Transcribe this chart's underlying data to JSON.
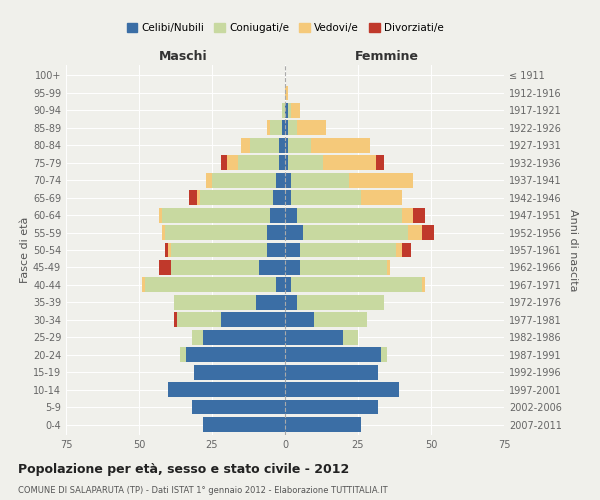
{
  "age_groups": [
    "0-4",
    "5-9",
    "10-14",
    "15-19",
    "20-24",
    "25-29",
    "30-34",
    "35-39",
    "40-44",
    "45-49",
    "50-54",
    "55-59",
    "60-64",
    "65-69",
    "70-74",
    "75-79",
    "80-84",
    "85-89",
    "90-94",
    "95-99",
    "100+"
  ],
  "birth_years": [
    "2007-2011",
    "2002-2006",
    "1997-2001",
    "1992-1996",
    "1987-1991",
    "1982-1986",
    "1977-1981",
    "1972-1976",
    "1967-1971",
    "1962-1966",
    "1957-1961",
    "1952-1956",
    "1947-1951",
    "1942-1946",
    "1937-1941",
    "1932-1936",
    "1927-1931",
    "1922-1926",
    "1917-1921",
    "1912-1916",
    "≤ 1911"
  ],
  "maschi": {
    "celibi": [
      28,
      32,
      40,
      31,
      34,
      28,
      22,
      10,
      3,
      9,
      6,
      6,
      5,
      4,
      3,
      2,
      2,
      1,
      0,
      0,
      0
    ],
    "coniugati": [
      0,
      0,
      0,
      0,
      2,
      4,
      15,
      28,
      45,
      30,
      33,
      35,
      37,
      25,
      22,
      14,
      10,
      4,
      1,
      0,
      0
    ],
    "vedovi": [
      0,
      0,
      0,
      0,
      0,
      0,
      0,
      0,
      1,
      0,
      1,
      1,
      1,
      1,
      2,
      4,
      3,
      1,
      0,
      0,
      0
    ],
    "divorziati": [
      0,
      0,
      0,
      0,
      0,
      0,
      1,
      0,
      0,
      4,
      1,
      0,
      0,
      3,
      0,
      2,
      0,
      0,
      0,
      0,
      0
    ]
  },
  "femmine": {
    "nubili": [
      26,
      32,
      39,
      32,
      33,
      20,
      10,
      4,
      2,
      5,
      5,
      6,
      4,
      2,
      2,
      1,
      1,
      1,
      1,
      0,
      0
    ],
    "coniugate": [
      0,
      0,
      0,
      0,
      2,
      5,
      18,
      30,
      45,
      30,
      33,
      36,
      36,
      24,
      20,
      12,
      8,
      3,
      1,
      0,
      0
    ],
    "vedove": [
      0,
      0,
      0,
      0,
      0,
      0,
      0,
      0,
      1,
      1,
      2,
      5,
      4,
      14,
      22,
      18,
      20,
      10,
      3,
      1,
      0
    ],
    "divorziate": [
      0,
      0,
      0,
      0,
      0,
      0,
      0,
      0,
      0,
      0,
      3,
      4,
      4,
      0,
      0,
      3,
      0,
      0,
      0,
      0,
      0
    ]
  },
  "color_celibi": "#3b6ea5",
  "color_coniugati": "#c8d9a0",
  "color_vedovi": "#f5c97a",
  "color_divorziati": "#c0392b",
  "xlim": 75,
  "title": "Popolazione per età, sesso e stato civile - 2012",
  "subtitle": "COMUNE DI SALAPARUTA (TP) - Dati ISTAT 1° gennaio 2012 - Elaborazione TUTTITALIA.IT",
  "ylabel": "Fasce di età",
  "y2label": "Anni di nascita",
  "legend_labels": [
    "Celibi/Nubili",
    "Coniugati/e",
    "Vedovi/e",
    "Divorziati/e"
  ],
  "maschi_label": "Maschi",
  "femmine_label": "Femmine",
  "bg_color": "#f0f0eb",
  "bar_height": 0.85
}
